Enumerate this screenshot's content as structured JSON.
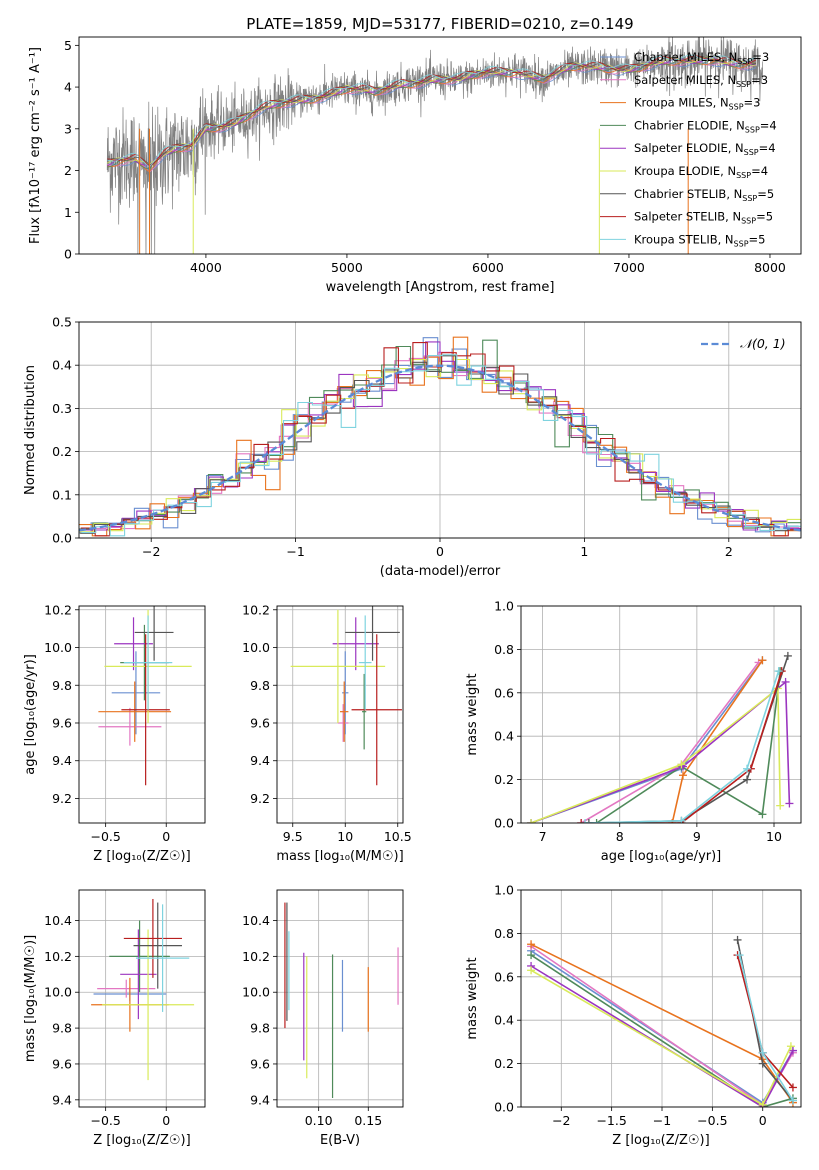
{
  "title": "PLATE=1859, MJD=53177, FIBERID=0210, z=0.149",
  "colors": {
    "Chabrier MILES": "#6a8fd0",
    "Salpeter MILES": "#e377c2",
    "Kroupa MILES": "#e8731e",
    "Chabrier ELODIE": "#4f8a5a",
    "Salpeter ELODIE": "#9b35c0",
    "Kroupa ELODIE": "#d9ea5a",
    "Chabrier STELIB": "#555555",
    "Salpeter STELIB": "#b81f1f",
    "Kroupa STELIB": "#7fd3df",
    "data": "#808080"
  },
  "legend": [
    {
      "name": "Chabrier MILES",
      "label": "Chabrier MILES, N",
      "sub": "SSP",
      "tail": "=3"
    },
    {
      "name": "Salpeter MILES",
      "label": "Salpeter MILES, N",
      "sub": "SSP",
      "tail": "=3"
    },
    {
      "name": "Kroupa MILES",
      "label": "Kroupa MILES, N",
      "sub": "SSP",
      "tail": "=3"
    },
    {
      "name": "Chabrier ELODIE",
      "label": "Chabrier ELODIE, N",
      "sub": "SSP",
      "tail": "=4"
    },
    {
      "name": "Salpeter ELODIE",
      "label": "Salpeter ELODIE, N",
      "sub": "SSP",
      "tail": "=4"
    },
    {
      "name": "Kroupa ELODIE",
      "label": "Kroupa ELODIE, N",
      "sub": "SSP",
      "tail": "=4"
    },
    {
      "name": "Chabrier STELIB",
      "label": "Chabrier STELIB, N",
      "sub": "SSP",
      "tail": "=5"
    },
    {
      "name": "Salpeter STELIB",
      "label": "Salpeter STELIB, N",
      "sub": "SSP",
      "tail": "=5"
    },
    {
      "name": "Kroupa STELIB",
      "label": "Kroupa STELIB, N",
      "sub": "SSP",
      "tail": "=5"
    }
  ],
  "chart_data": [
    {
      "id": "spectrum",
      "type": "line",
      "xlabel": "wavelength [Angstrom, rest frame]",
      "ylabel": "Flux [fλ10⁻¹⁷ erg cm⁻² s⁻¹ A⁻¹]",
      "xlim": [
        3100,
        8220
      ],
      "ylim": [
        0,
        5.2
      ],
      "xticks": [
        4000,
        5000,
        6000,
        7000,
        8000
      ],
      "yticks": [
        0,
        1,
        2,
        3,
        4,
        5
      ],
      "grid": false,
      "legend_position": "right",
      "spectrum_knots": {
        "x": [
          3300,
          3400,
          3500,
          3600,
          3700,
          3800,
          3900,
          4000,
          4100,
          4200,
          4300,
          4400,
          4600,
          4800,
          5000,
          5200,
          5400,
          5600,
          5800,
          6000,
          6200,
          6400,
          6600,
          6800,
          7000,
          7200,
          7400,
          7600,
          7800,
          7950
        ],
        "y": [
          2.2,
          2.3,
          2.3,
          2.05,
          2.35,
          2.5,
          2.6,
          3.05,
          3.1,
          3.15,
          3.3,
          3.45,
          3.65,
          3.8,
          3.95,
          3.85,
          4.1,
          4.2,
          4.15,
          4.35,
          4.4,
          4.2,
          4.45,
          4.5,
          4.45,
          4.55,
          4.6,
          4.7,
          4.55,
          4.5
        ]
      },
      "series": [
        "Chabrier MILES",
        "Salpeter MILES",
        "Kroupa MILES",
        "Chabrier ELODIE",
        "Salpeter ELODIE",
        "Kroupa ELODIE",
        "Chabrier STELIB",
        "Salpeter STELIB",
        "Kroupa STELIB"
      ]
    },
    {
      "id": "residuals",
      "type": "bar",
      "xlabel": "(data-model)/error",
      "ylabel": "Normed distribution",
      "xlim": [
        -2.5,
        2.5
      ],
      "ylim": [
        0,
        0.5
      ],
      "xticks": [
        -2,
        -1,
        0,
        1,
        2
      ],
      "yticks": [
        0.0,
        0.1,
        0.2,
        0.3,
        0.4,
        0.5
      ],
      "grid": true,
      "legend_position": "top-right",
      "reference_curve": {
        "label": "𝒩(0, 1)",
        "color": "#5b8bd6",
        "mean": 0,
        "sigma": 1
      },
      "bin_width": 0.1,
      "hist_jitter": {
        "Chabrier MILES": 0.025,
        "Salpeter MILES": 0.02,
        "Kroupa MILES": 0.035,
        "Chabrier ELODIE": 0.03,
        "Salpeter ELODIE": 0.028,
        "Kroupa ELODIE": 0.025,
        "Chabrier STELIB": 0.022,
        "Salpeter STELIB": 0.024,
        "Kroupa STELIB": 0.026
      }
    },
    {
      "id": "age-vs-Z",
      "type": "scatter",
      "xlabel": "Z [log₁₀(Z/Z☉)]",
      "ylabel": "age [log₁₀(age/yr)]",
      "xlim": [
        -0.72,
        0.32
      ],
      "ylim": [
        9.07,
        10.22
      ],
      "xticks": [
        -0.5,
        0.0
      ],
      "ytick_labels": [
        "9.2",
        "9.4",
        "9.6",
        "9.8",
        "10.0",
        "10.2"
      ],
      "yticks": [
        9.2,
        9.4,
        9.6,
        9.8,
        10.0,
        10.2
      ],
      "grid": true,
      "points": [
        {
          "series": "Chabrier MILES",
          "x": -0.25,
          "xerr": 0.2,
          "y": 9.76,
          "yerr": 0.22
        },
        {
          "series": "Salpeter MILES",
          "x": -0.3,
          "xerr": 0.26,
          "y": 9.58,
          "yerr": 0.1
        },
        {
          "series": "Kroupa MILES",
          "x": -0.26,
          "xerr": 0.3,
          "y": 9.66,
          "yerr": 0.16
        },
        {
          "series": "Chabrier ELODIE",
          "x": -0.18,
          "xerr": 0.2,
          "y": 9.92,
          "yerr": 0.2
        },
        {
          "series": "Salpeter ELODIE",
          "x": -0.27,
          "xerr": 0.16,
          "y": 10.02,
          "yerr": 0.14
        },
        {
          "series": "Kroupa ELODIE",
          "x": -0.15,
          "xerr": 0.36,
          "y": 9.9,
          "yerr": 0.3
        },
        {
          "series": "Chabrier STELIB",
          "x": -0.1,
          "xerr": 0.16,
          "y": 10.08,
          "yerr": 0.15
        },
        {
          "series": "Salpeter STELIB",
          "x": -0.17,
          "xerr": 0.2,
          "y": 9.67,
          "yerr": 0.4
        },
        {
          "series": "Kroupa STELIB",
          "x": -0.15,
          "xerr": 0.2,
          "y": 9.92,
          "yerr": 0.25
        }
      ]
    },
    {
      "id": "age-vs-mass",
      "type": "scatter",
      "xlabel": "mass [log₁₀(M/M☉)]",
      "ylabel": "",
      "xlim": [
        9.35,
        10.55
      ],
      "ylim": [
        9.07,
        10.22
      ],
      "xticks": [
        9.5,
        10.0,
        10.5
      ],
      "yticks": [
        9.2,
        9.4,
        9.6,
        9.8,
        10.0,
        10.2
      ],
      "grid": true,
      "points": [
        {
          "series": "Chabrier MILES",
          "x": 10.0,
          "xerr": 0.03,
          "y": 9.76,
          "yerr": 0.22
        },
        {
          "series": "Salpeter MILES",
          "x": 9.98,
          "xerr": 0.05,
          "y": 9.6,
          "yerr": 0.1
        },
        {
          "series": "Kroupa MILES",
          "x": 9.99,
          "xerr": 0.04,
          "y": 9.66,
          "yerr": 0.16
        },
        {
          "series": "Chabrier ELODIE",
          "x": 10.18,
          "xerr": 0.02,
          "y": 9.66,
          "yerr": 0.2
        },
        {
          "series": "Salpeter ELODIE",
          "x": 10.1,
          "xerr": 0.22,
          "y": 10.02,
          "yerr": 0.14
        },
        {
          "series": "Kroupa ELODIE",
          "x": 9.93,
          "xerr": 0.45,
          "y": 9.9,
          "yerr": 0.3
        },
        {
          "series": "Chabrier STELIB",
          "x": 10.26,
          "xerr": 0.26,
          "y": 10.08,
          "yerr": 0.15
        },
        {
          "series": "Salpeter STELIB",
          "x": 10.3,
          "xerr": 0.24,
          "y": 9.67,
          "yerr": 0.4
        },
        {
          "series": "Kroupa STELIB",
          "x": 10.19,
          "xerr": 0.06,
          "y": 9.92,
          "yerr": 0.25
        }
      ]
    },
    {
      "id": "weight-vs-age",
      "type": "line",
      "xlabel": "age [log₁₀(age/yr)]",
      "ylabel": "mass weight",
      "xlim": [
        6.72,
        10.35
      ],
      "ylim": [
        0,
        1.0
      ],
      "xticks": [
        7,
        8,
        9,
        10
      ],
      "yticks": [
        0.0,
        0.2,
        0.4,
        0.6,
        0.8,
        1.0
      ],
      "grid": true,
      "series": [
        {
          "name": "Chabrier MILES",
          "x": [
            6.85,
            8.8,
            9.85
          ],
          "y": [
            0.0,
            0.25,
            0.75
          ]
        },
        {
          "name": "Salpeter MILES",
          "x": [
            7.5,
            8.8,
            9.8
          ],
          "y": [
            0.0,
            0.27,
            0.74
          ]
        },
        {
          "name": "Kroupa MILES",
          "x": [
            8.68,
            8.82,
            9.85
          ],
          "y": [
            0.0,
            0.22,
            0.75
          ]
        },
        {
          "name": "Chabrier ELODIE",
          "x": [
            7.7,
            8.8,
            9.85,
            10.08
          ],
          "y": [
            0.0,
            0.26,
            0.04,
            0.7
          ]
        },
        {
          "name": "Salpeter ELODIE",
          "x": [
            6.85,
            8.82,
            10.15,
            10.2
          ],
          "y": [
            0.0,
            0.26,
            0.65,
            0.09
          ]
        },
        {
          "name": "Kroupa ELODIE",
          "x": [
            6.85,
            8.8,
            10.05,
            10.08
          ],
          "y": [
            0.0,
            0.27,
            0.62,
            0.08
          ]
        },
        {
          "name": "Chabrier STELIB",
          "x": [
            7.6,
            8.8,
            9.65,
            10.18
          ],
          "y": [
            0.0,
            0.01,
            0.2,
            0.77
          ]
        },
        {
          "name": "Salpeter STELIB",
          "x": [
            7.5,
            8.8,
            9.7,
            10.1
          ],
          "y": [
            0.0,
            0.0,
            0.25,
            0.7
          ]
        },
        {
          "name": "Kroupa STELIB",
          "x": [
            7.55,
            8.8,
            9.65,
            10.06
          ],
          "y": [
            0.0,
            0.01,
            0.25,
            0.7
          ]
        }
      ]
    },
    {
      "id": "mass-vs-Z",
      "type": "scatter",
      "xlabel": "Z [log₁₀(Z/Z☉)]",
      "ylabel": "mass [log₁₀(M/M☉)]",
      "xlim": [
        -0.72,
        0.32
      ],
      "ylim": [
        9.36,
        10.57
      ],
      "xticks": [
        -0.5,
        0.0
      ],
      "yticks": [
        9.4,
        9.6,
        9.8,
        10.0,
        10.2,
        10.4
      ],
      "grid": true,
      "points": [
        {
          "series": "Chabrier MILES",
          "x": -0.3,
          "xerr": 0.3,
          "y": 9.99,
          "yerr": 0.04
        },
        {
          "series": "Salpeter MILES",
          "x": -0.33,
          "xerr": 0.24,
          "y": 10.02,
          "yerr": 0.05
        },
        {
          "series": "Kroupa MILES",
          "x": -0.3,
          "xerr": 0.32,
          "y": 9.93,
          "yerr": 0.15
        },
        {
          "series": "Chabrier ELODIE",
          "x": -0.22,
          "xerr": 0.25,
          "y": 10.2,
          "yerr": 0.2
        },
        {
          "series": "Salpeter ELODIE",
          "x": -0.23,
          "xerr": 0.15,
          "y": 10.1,
          "yerr": 0.25
        },
        {
          "series": "Kroupa ELODIE",
          "x": -0.15,
          "xerr": 0.38,
          "y": 9.93,
          "yerr": 0.42
        },
        {
          "series": "Chabrier STELIB",
          "x": -0.07,
          "xerr": 0.2,
          "y": 10.26,
          "yerr": 0.24
        },
        {
          "series": "Salpeter STELIB",
          "x": -0.11,
          "xerr": 0.24,
          "y": 10.3,
          "yerr": 0.22
        },
        {
          "series": "Kroupa STELIB",
          "x": -0.03,
          "xerr": 0.22,
          "y": 10.19,
          "yerr": 0.3
        }
      ]
    },
    {
      "id": "mass-vs-ebv",
      "type": "scatter",
      "xlabel": "E(B-V)",
      "ylabel": "",
      "xlim": [
        0.058,
        0.185
      ],
      "ylim": [
        9.36,
        10.57
      ],
      "xticks": [
        0.1,
        0.15
      ],
      "xtick_labels": [
        "0.10",
        "0.15"
      ],
      "yticks": [
        9.4,
        9.6,
        9.8,
        10.0,
        10.2,
        10.4
      ],
      "grid": true,
      "points": [
        {
          "series": "Chabrier MILES",
          "x": 0.124,
          "y": 9.98,
          "yerr": 0.2
        },
        {
          "series": "Salpeter MILES",
          "x": 0.18,
          "y": 10.09,
          "yerr": 0.16
        },
        {
          "series": "Kroupa MILES",
          "x": 0.15,
          "y": 9.96,
          "yerr": 0.18
        },
        {
          "series": "Chabrier ELODIE",
          "x": 0.114,
          "y": 9.81,
          "yerr": 0.4
        },
        {
          "series": "Salpeter ELODIE",
          "x": 0.085,
          "y": 9.92,
          "yerr": 0.3
        },
        {
          "series": "Kroupa ELODIE",
          "x": 0.088,
          "y": 9.86,
          "yerr": 0.34
        },
        {
          "series": "Chabrier STELIB",
          "x": 0.068,
          "y": 10.17,
          "yerr": 0.33
        },
        {
          "series": "Salpeter STELIB",
          "x": 0.066,
          "y": 10.15,
          "yerr": 0.35
        },
        {
          "series": "Kroupa STELIB",
          "x": 0.07,
          "y": 10.12,
          "yerr": 0.22
        }
      ]
    },
    {
      "id": "weight-vs-Z",
      "type": "line",
      "xlabel": "Z [log₁₀(Z/Z☉)]",
      "ylabel": "mass weight",
      "xlim": [
        -2.4,
        0.38
      ],
      "ylim": [
        0,
        1.0
      ],
      "xticks": [
        -2.0,
        -1.5,
        -1.0,
        -0.5,
        0.0
      ],
      "yticks": [
        0.0,
        0.2,
        0.4,
        0.6,
        0.8,
        1.0
      ],
      "grid": true,
      "series": [
        {
          "name": "Chabrier MILES",
          "x": [
            -2.3,
            0.0,
            0.3
          ],
          "y": [
            0.72,
            0.02,
            0.26
          ]
        },
        {
          "name": "Salpeter MILES",
          "x": [
            -2.3,
            0.0,
            0.3
          ],
          "y": [
            0.74,
            0.01,
            0.25
          ]
        },
        {
          "name": "Kroupa MILES",
          "x": [
            -2.3,
            0.0,
            0.3
          ],
          "y": [
            0.75,
            0.22,
            0.02
          ]
        },
        {
          "name": "Chabrier ELODIE",
          "x": [
            -2.3,
            0.0,
            0.3
          ],
          "y": [
            0.7,
            0.0,
            0.04
          ]
        },
        {
          "name": "Salpeter ELODIE",
          "x": [
            -2.3,
            0.0,
            0.3
          ],
          "y": [
            0.65,
            0.0,
            0.26
          ]
        },
        {
          "name": "Kroupa ELODIE",
          "x": [
            -2.3,
            0.0,
            0.28
          ],
          "y": [
            0.63,
            0.01,
            0.28
          ]
        },
        {
          "name": "Chabrier STELIB",
          "x": [
            -0.25,
            0.0,
            0.3
          ],
          "y": [
            0.77,
            0.2,
            0.03
          ]
        },
        {
          "name": "Salpeter STELIB",
          "x": [
            -0.25,
            0.0,
            0.3
          ],
          "y": [
            0.7,
            0.25,
            0.09
          ]
        },
        {
          "name": "Kroupa STELIB",
          "x": [
            -0.23,
            0.0,
            0.3
          ],
          "y": [
            0.7,
            0.25,
            0.03
          ]
        }
      ]
    }
  ]
}
